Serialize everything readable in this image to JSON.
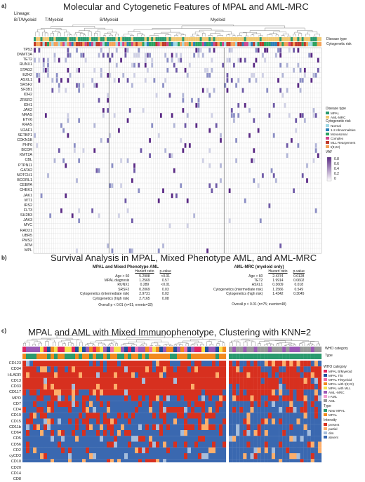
{
  "panel_a": {
    "letter": "a)",
    "title": "Molecular and Cytogenetic Features of MPAL and AML-MRC",
    "lineage_label": "Lineage:",
    "lineages": [
      "B/T/Myeloid",
      "T/Myeloid",
      "B/Myeloid",
      "Myeloid"
    ],
    "track_labels": [
      "Disease type",
      "Cytogenetic risk"
    ],
    "genes": [
      "TP53",
      "DNMT3A",
      "TET2",
      "RUNX1",
      "STAG2",
      "EZH2",
      "ASXL1",
      "SRSF2",
      "SF3B1",
      "IDH2",
      "ZRSR2",
      "IDH1",
      "JAK2",
      "NRAS",
      "ETV6",
      "KRAS",
      "U2AF1",
      "SETBP1",
      "CDKN1B",
      "PHF6",
      "BCOR",
      "KMT2A",
      "CBL",
      "PTPN11",
      "GATA2",
      "NOTCH1",
      "BCORL1",
      "CEBPA",
      "CHEK1",
      "JAK1",
      "WT1",
      "IRS2",
      "FLT3",
      "SH2B3",
      "JAK3",
      "MYC",
      "RAD21",
      "UBR5",
      "PMS2",
      "ATM",
      "MPL"
    ],
    "legend": {
      "disease_type_title": "Disease type",
      "disease_types": [
        {
          "label": "MPAL",
          "color": "#2a9a6e"
        },
        {
          "label": "AML-MRC",
          "color": "#f0c870"
        }
      ],
      "cyto_title": "Cytogenetic risk",
      "cyto": [
        {
          "label": "Normal",
          "color": "#9fd9e4"
        },
        {
          "label": "1-2 Abnormalities",
          "color": "#2c7fb8"
        },
        {
          "label": "Monosomal",
          "color": "#2ca25f"
        },
        {
          "label": "Complex",
          "color": "#d1458d"
        },
        {
          "label": "MLL Reargement",
          "color": "#c0392b"
        },
        {
          "label": "t(9;22)",
          "color": "#f4a259"
        }
      ],
      "vaf_title": "VAF",
      "vaf_ticks": [
        "0.8",
        "0.6",
        "0.4",
        "0.2",
        "0"
      ]
    }
  },
  "panel_b": {
    "letter": "b)",
    "title": "Survival Analysis in MPAL, Mixed Phenotype AML, and AML-MRC",
    "left": {
      "title": "MPAL and Mixed Phenotype AML",
      "headers": [
        "",
        "Hazard ratio",
        "p-value"
      ],
      "rows": [
        [
          "Age > 60",
          "5.2908",
          "<0.01"
        ],
        [
          "MPAL diagnosis",
          "1.2569",
          "0.57"
        ],
        [
          "RUNX1",
          "0.289",
          "<0.01"
        ],
        [
          "SRSF2",
          "0.2069",
          "0.03"
        ],
        [
          "Cytogenetics (intermediate risk)",
          "2.9731",
          "0.02"
        ],
        [
          "Cytogenetics (high risk)",
          "2.7165",
          "0.08"
        ]
      ],
      "footer": "Overall p < 0.01 (n=51; events=32)"
    },
    "right": {
      "title": "AML-MRC (myeloid only)",
      "headers": [
        "",
        "Hazard ratio",
        "p-value"
      ],
      "rows": [
        [
          "Age > 60",
          "2.4374",
          "0.0128"
        ],
        [
          "TET2",
          "1.9914",
          "0.0602"
        ],
        [
          "ASXL1",
          "0.3609",
          "0.018"
        ],
        [
          "Cytogenetics (intermediate risk)",
          "1.2566",
          "0.549"
        ],
        [
          "Cytogenetics (high risk)",
          "1.4342",
          "0.3045"
        ]
      ],
      "footer": "Overall p < 0.01 (n=75; events=48)"
    }
  },
  "panel_c": {
    "letter": "c)",
    "title": "MPAL and AML with Mixed Immunophenotype, Clustering with KNN=2",
    "track_labels": [
      "WHO category",
      "Type"
    ],
    "markers": [
      "CD123",
      "CD34",
      "HLADR",
      "CD13",
      "CD33",
      "CD117",
      "MPO",
      "CD7",
      "CD4",
      "CD19",
      "CD15",
      "CD11b",
      "CD64",
      "CD5",
      "CD56",
      "CD2",
      "cyCD3",
      "CD10",
      "CD20",
      "CD14",
      "CD8"
    ],
    "legend": {
      "who_title": "WHO category",
      "who": [
        {
          "label": "MPAL B/Myeloid",
          "color": "#e0245e"
        },
        {
          "label": "MPAL T/B",
          "color": "#1f4e9c"
        },
        {
          "label": "MPAL T/Myeloid",
          "color": "#f06ea9"
        },
        {
          "label": "MPAL with t(9;22)",
          "color": "#f28a1e"
        },
        {
          "label": "MPAL with MLL",
          "color": "#f7e04b"
        },
        {
          "label": "AML -MRC",
          "color": "#9b59b6"
        },
        {
          "label": "t-AML",
          "color": "#f39bd0"
        },
        {
          "label": "AML",
          "color": "#999999"
        }
      ],
      "type_title": "Type",
      "types": [
        {
          "label": "Near MPAL",
          "color": "#2a9a6e"
        },
        {
          "label": "MPAL",
          "color": "#f28a1e"
        }
      ],
      "intensity_title": "Intensity",
      "intensity": [
        {
          "label": "present",
          "color": "#d7301f"
        },
        {
          "label": "partial",
          "color": "#fdae6b"
        },
        {
          "label": "dim",
          "color": "#a6bddb"
        },
        {
          "label": "absent",
          "color": "#3a68b0"
        }
      ]
    }
  },
  "colors": {
    "vaf_high": "#5b2a86",
    "vaf_low": "#d0d1e6",
    "grid_line": "#cccccc"
  }
}
